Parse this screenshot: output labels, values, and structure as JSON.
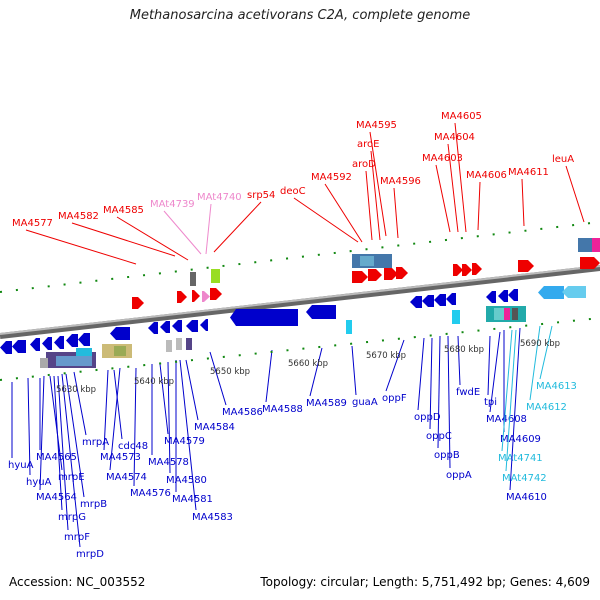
{
  "title": "Methanosarcina acetivorans C2A, complete genome",
  "footer": {
    "accession": "Accession: NC_003552",
    "summary": "Topology: circular; Length: 5,751,492 bp; Genes: 4,609"
  },
  "colors": {
    "forward_gene": "#ee0000",
    "reverse_gene": "#0000cc",
    "rna_pink": "#ee88cc",
    "rna_cyan": "#22bbdd",
    "backbone": "#888888",
    "tick": "#118811"
  },
  "scale_ticks": [
    "5630 kbp",
    "5640 kbp",
    "5650 kbp",
    "5660 kbp",
    "5670 kbp",
    "5680 kbp",
    "5690 kbp"
  ],
  "top_labels": [
    {
      "text": "MA4577",
      "color": "#ee0000"
    },
    {
      "text": "MA4582",
      "color": "#ee0000"
    },
    {
      "text": "MA4585",
      "color": "#ee0000"
    },
    {
      "text": "MAt4739",
      "color": "#ee88cc"
    },
    {
      "text": "MAt4740",
      "color": "#ee88cc"
    },
    {
      "text": "srp54",
      "color": "#ee0000"
    },
    {
      "text": "deoC",
      "color": "#ee0000"
    },
    {
      "text": "MA4592",
      "color": "#ee0000"
    },
    {
      "text": "aroD",
      "color": "#ee0000"
    },
    {
      "text": "aroE",
      "color": "#ee0000"
    },
    {
      "text": "MA4595",
      "color": "#ee0000"
    },
    {
      "text": "MA4596",
      "color": "#ee0000"
    },
    {
      "text": "MA4603",
      "color": "#ee0000"
    },
    {
      "text": "MA4604",
      "color": "#ee0000"
    },
    {
      "text": "MA4605",
      "color": "#ee0000"
    },
    {
      "text": "MA4606",
      "color": "#ee0000"
    },
    {
      "text": "MA4611",
      "color": "#ee0000"
    },
    {
      "text": "leuA",
      "color": "#ee0000"
    }
  ],
  "bottom_labels": [
    {
      "text": "hyuA",
      "color": "#0000cc"
    },
    {
      "text": "hyuA",
      "color": "#0000cc"
    },
    {
      "text": "MA4565",
      "color": "#0000cc"
    },
    {
      "text": "MA4564",
      "color": "#0000cc"
    },
    {
      "text": "mrpE",
      "color": "#0000cc"
    },
    {
      "text": "mrpG",
      "color": "#0000cc"
    },
    {
      "text": "mrpF",
      "color": "#0000cc"
    },
    {
      "text": "mrpD",
      "color": "#0000cc"
    },
    {
      "text": "mrpB",
      "color": "#0000cc"
    },
    {
      "text": "mrpA",
      "color": "#0000cc"
    },
    {
      "text": "MA4573",
      "color": "#0000cc"
    },
    {
      "text": "cdc48",
      "color": "#0000cc"
    },
    {
      "text": "MA4574",
      "color": "#0000cc"
    },
    {
      "text": "MA4576",
      "color": "#0000cc"
    },
    {
      "text": "MA4578",
      "color": "#0000cc"
    },
    {
      "text": "MA4579",
      "color": "#0000cc"
    },
    {
      "text": "MA4580",
      "color": "#0000cc"
    },
    {
      "text": "MA4581",
      "color": "#0000cc"
    },
    {
      "text": "MA4583",
      "color": "#0000cc"
    },
    {
      "text": "MA4584",
      "color": "#0000cc"
    },
    {
      "text": "MA4586",
      "color": "#0000cc"
    },
    {
      "text": "MA4588",
      "color": "#0000cc"
    },
    {
      "text": "MA4589",
      "color": "#0000cc"
    },
    {
      "text": "guaA",
      "color": "#0000cc"
    },
    {
      "text": "oppF",
      "color": "#0000cc"
    },
    {
      "text": "oppD",
      "color": "#0000cc"
    },
    {
      "text": "oppC",
      "color": "#0000cc"
    },
    {
      "text": "oppB",
      "color": "#0000cc"
    },
    {
      "text": "oppA",
      "color": "#0000cc"
    },
    {
      "text": "fwdE",
      "color": "#0000cc"
    },
    {
      "text": "tpi",
      "color": "#0000cc"
    },
    {
      "text": "MA4608",
      "color": "#0000cc"
    },
    {
      "text": "MA4609",
      "color": "#0000cc"
    },
    {
      "text": "MAt4741",
      "color": "#22bbdd"
    },
    {
      "text": "MAt4742",
      "color": "#22bbdd"
    },
    {
      "text": "MA4610",
      "color": "#0000cc"
    },
    {
      "text": "MA4612",
      "color": "#22bbdd"
    },
    {
      "text": "MA4613",
      "color": "#22bbdd"
    }
  ]
}
